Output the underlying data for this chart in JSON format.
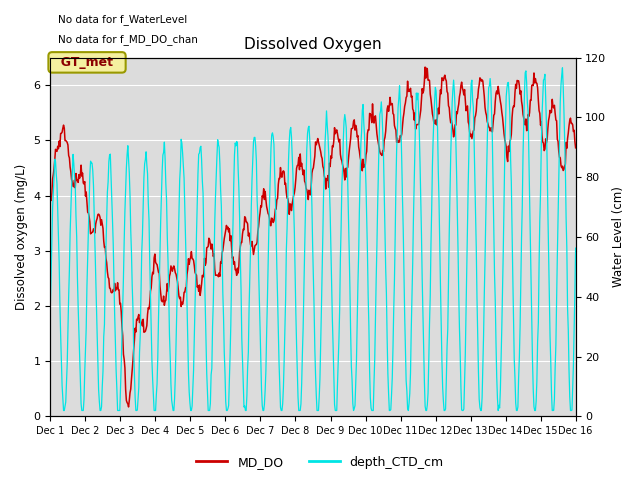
{
  "title": "Dissolved Oxygen",
  "ylabel_left": "Dissolved oxygen (mg/L)",
  "ylabel_right": "Water Level (cm)",
  "ylim_left": [
    0.0,
    6.5
  ],
  "ylim_right": [
    0,
    120
  ],
  "annotation1": "No data for f_WaterLevel",
  "annotation2": "No data for f_MD_DO_chan",
  "legend_box_label": "GT_met",
  "legend_line1": "MD_DO",
  "legend_line2": "depth_CTD_cm",
  "color_MD_DO": "#cc0000",
  "color_depth": "#00e5e5",
  "background_color": "#ffffff",
  "plot_bg_color": "#dcdcdc",
  "xtick_labels": [
    "Dec 1",
    "Dec 2",
    "Dec 3",
    "Dec 4",
    "Dec 5",
    "Dec 6",
    "Dec 7",
    "Dec 8",
    "Dec 9",
    "Dec 10",
    "Dec 11",
    "Dec 12",
    "Dec 13",
    "Dec 14",
    "Dec 15",
    "Dec 16"
  ],
  "xtick_positions": [
    1,
    2,
    3,
    4,
    5,
    6,
    7,
    8,
    9,
    10,
    11,
    12,
    13,
    14,
    15,
    16
  ]
}
